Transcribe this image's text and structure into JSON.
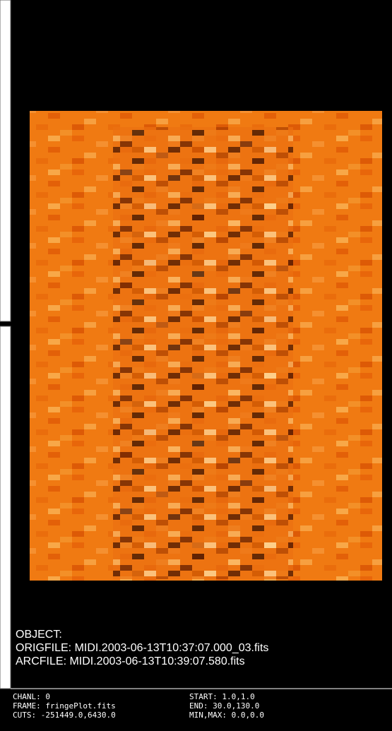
{
  "info": {
    "object": "OBJECT:",
    "origfile": "ORIGFILE: MIDI.2003-06-13T10:37:07.000_03.fits",
    "arcfile": "ARCFILE: MIDI.2003-06-13T10:39:07.580.fits"
  },
  "status": {
    "left": [
      "CHANL: 0",
      "FRAME: fringePlot.fits",
      "CUTS: -251449.0,6430.0"
    ],
    "right": [
      "START: 1.0,1.0",
      "END: 30.0,130.0",
      "MIN,MAX: 0.0,0.0"
    ]
  }
}
